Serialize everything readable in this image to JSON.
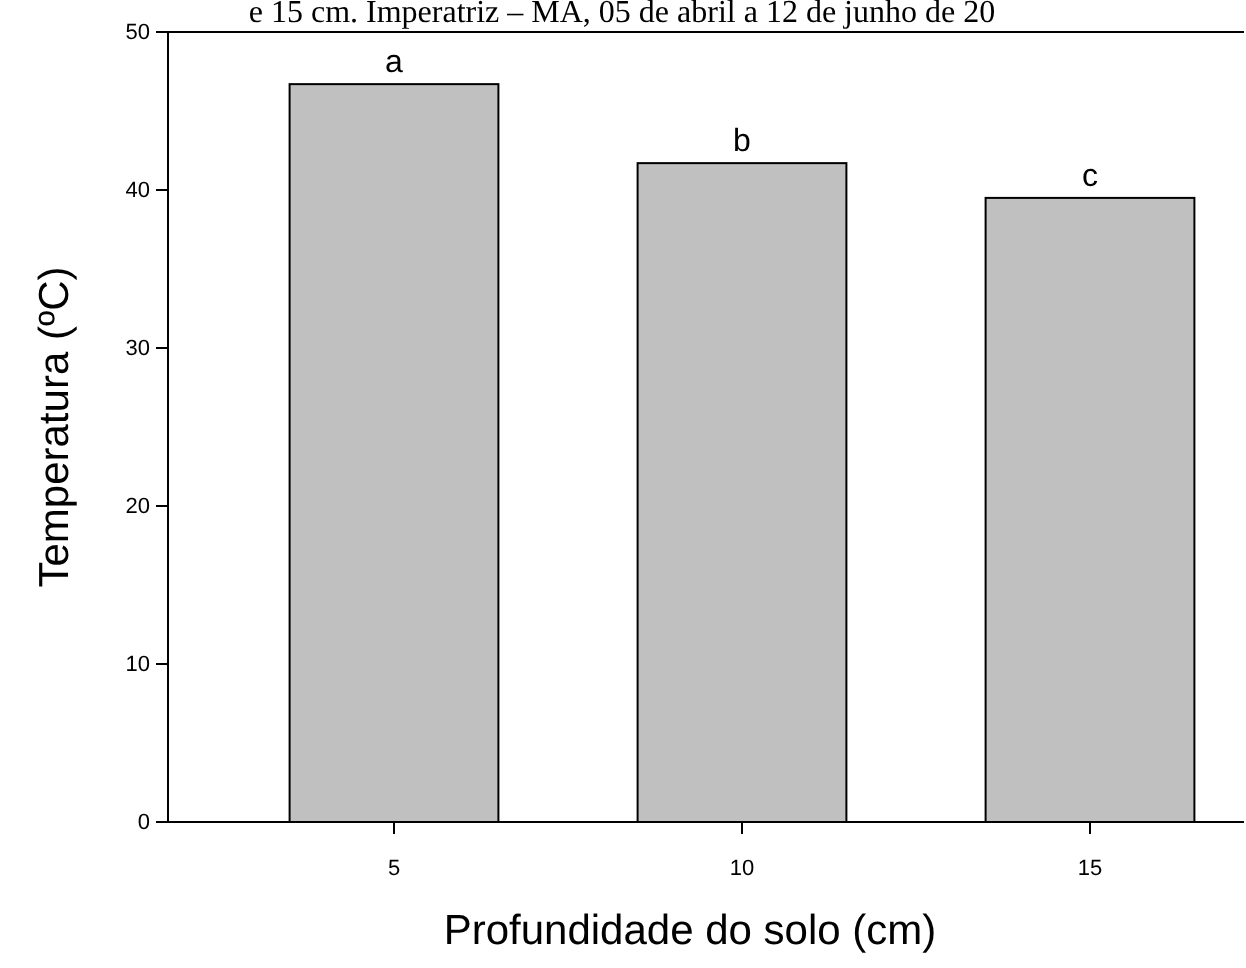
{
  "chart_data": {
    "type": "bar",
    "categories": [
      "5",
      "10",
      "15"
    ],
    "values": [
      46.7,
      41.7,
      39.5
    ],
    "color": "#c0c0c0",
    "ylim": [
      0,
      50
    ],
    "yticks": [
      0,
      10,
      20,
      30,
      40,
      50
    ],
    "xlabel": "Profundidade do solo (cm)",
    "ylabel": "Temperatura (ºC)",
    "grid": false,
    "annotations": [
      {
        "text": "a",
        "x": "5",
        "y": 46.7
      },
      {
        "text": "b",
        "x": "10",
        "y": 41.7
      },
      {
        "text": "c",
        "x": "15",
        "y": 39.5
      },
      "e 15 cm. Imperatriz – MA, 05 de abril a 12 de junho de 20"
    ]
  }
}
